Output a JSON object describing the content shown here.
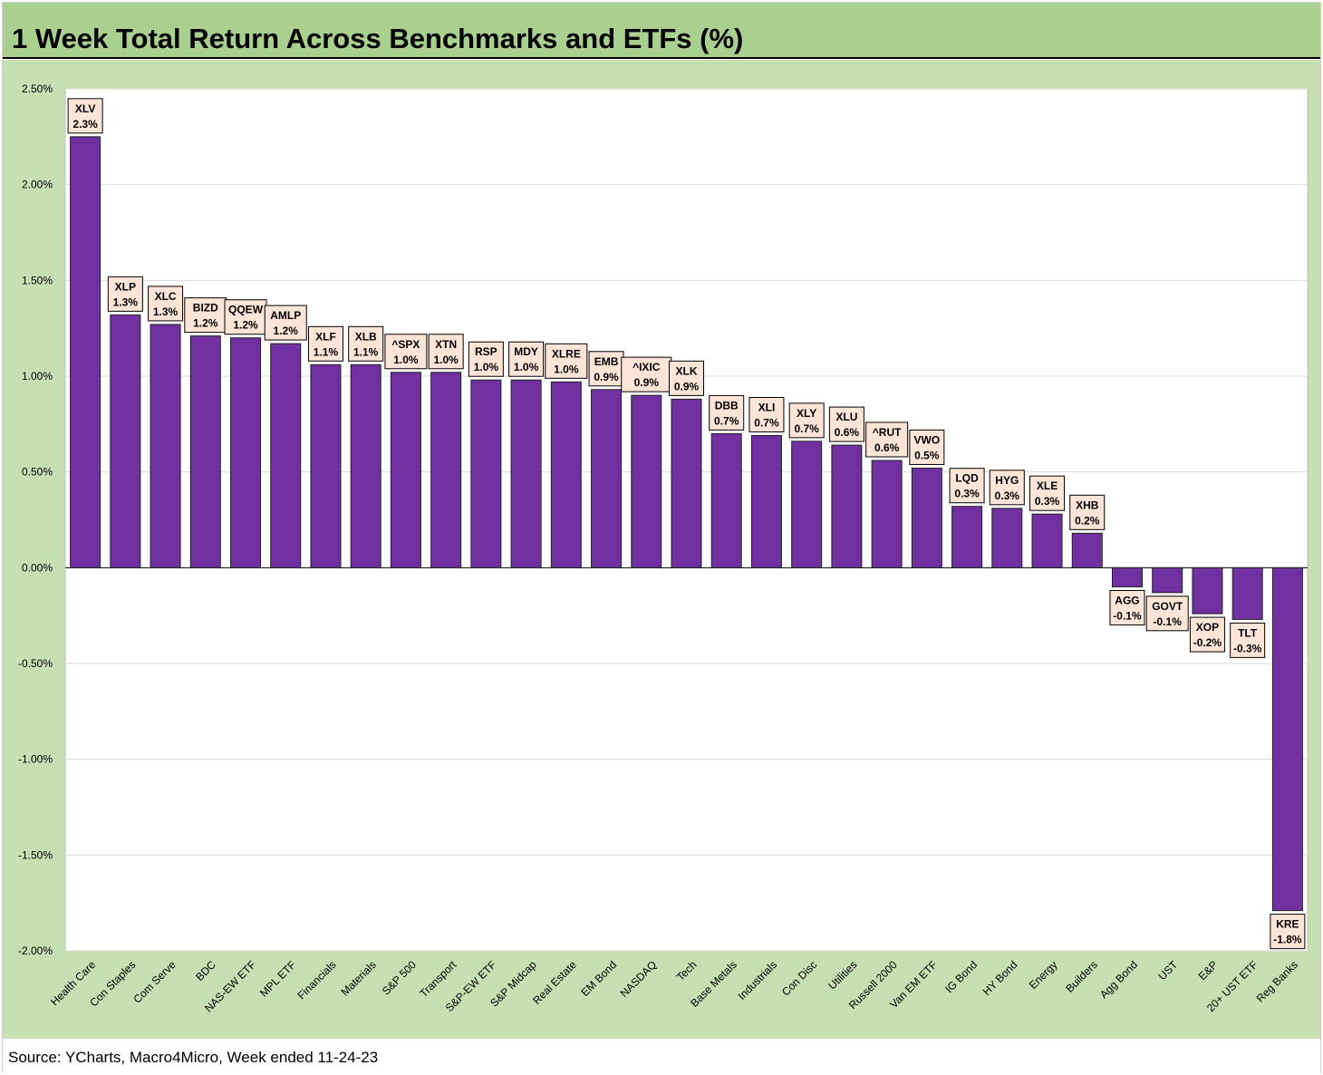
{
  "title": "1 Week Total Return Across Benchmarks and ETFs (%)",
  "source": "Source: YCharts, Macro4Micro, Week ended 11-24-23",
  "colors": {
    "bar": "#7030a0",
    "chart_background": "#c6e0b4",
    "plot_background": "#ffffff",
    "title_background": "#a9d08e",
    "label_background": "#fce4d6",
    "gridline": "#d9d9d9"
  },
  "chart_data": {
    "type": "bar",
    "title": "1 Week Total Return Across Benchmarks and ETFs (%)",
    "xlabel": "",
    "ylabel": "",
    "ylim": [
      -0.02,
      0.025
    ],
    "y_ticks": [
      "2.50%",
      "2.00%",
      "1.50%",
      "1.00%",
      "0.50%",
      "0.00%",
      "-0.50%",
      "-1.00%",
      "-1.50%",
      "-2.00%"
    ],
    "y_tick_values": [
      0.025,
      0.02,
      0.015,
      0.01,
      0.005,
      0.0,
      -0.005,
      -0.01,
      -0.015,
      -0.02
    ],
    "grid": true,
    "legend": "none",
    "categories": [
      "Health Care",
      "Con Staples",
      "Com Serve",
      "BDC",
      "NAS-EW ETF",
      "MPL ETF",
      "Financials",
      "Materials",
      "S&P 500",
      "Transport",
      "S&P-EW ETF",
      "S&P Midcap",
      "Real Estate",
      "EM Bond",
      "NASDAQ",
      "Tech",
      "Base Metals",
      "Industrials",
      "Con Disc",
      "Utilities",
      "Russell 2000",
      "Van EM ETF",
      "IG Bond",
      "HY Bond",
      "Energy",
      "Builders",
      "Agg Bond",
      "UST",
      "E&P",
      "20+ UST ETF",
      "Reg Banks"
    ],
    "tickers": [
      "XLV",
      "XLP",
      "XLC",
      "BIZD",
      "QQEW",
      "AMLP",
      "XLF",
      "XLB",
      "^SPX",
      "XTN",
      "RSP",
      "MDY",
      "XLRE",
      "EMB",
      "^IXIC",
      "XLK",
      "DBB",
      "XLI",
      "XLY",
      "XLU",
      "^RUT",
      "VWO",
      "LQD",
      "HYG",
      "XLE",
      "XHB",
      "AGG",
      "GOVT",
      "XOP",
      "TLT",
      "KRE"
    ],
    "value_labels": [
      "2.3%",
      "1.3%",
      "1.3%",
      "1.2%",
      "1.2%",
      "1.2%",
      "1.1%",
      "1.1%",
      "1.0%",
      "1.0%",
      "1.0%",
      "1.0%",
      "1.0%",
      "0.9%",
      "0.9%",
      "0.9%",
      "0.7%",
      "0.7%",
      "0.7%",
      "0.6%",
      "0.6%",
      "0.5%",
      "0.3%",
      "0.3%",
      "0.3%",
      "0.2%",
      "-0.1%",
      "-0.1%",
      "-0.2%",
      "-0.3%",
      "-1.8%"
    ],
    "values": [
      0.0225,
      0.0132,
      0.0127,
      0.0121,
      0.012,
      0.0117,
      0.0106,
      0.0106,
      0.0102,
      0.0102,
      0.0098,
      0.0098,
      0.0097,
      0.0093,
      0.009,
      0.0088,
      0.007,
      0.0069,
      0.0066,
      0.0064,
      0.0056,
      0.0052,
      0.0032,
      0.0031,
      0.0028,
      0.0018,
      -0.001,
      -0.0013,
      -0.0024,
      -0.0027,
      -0.0179
    ]
  }
}
